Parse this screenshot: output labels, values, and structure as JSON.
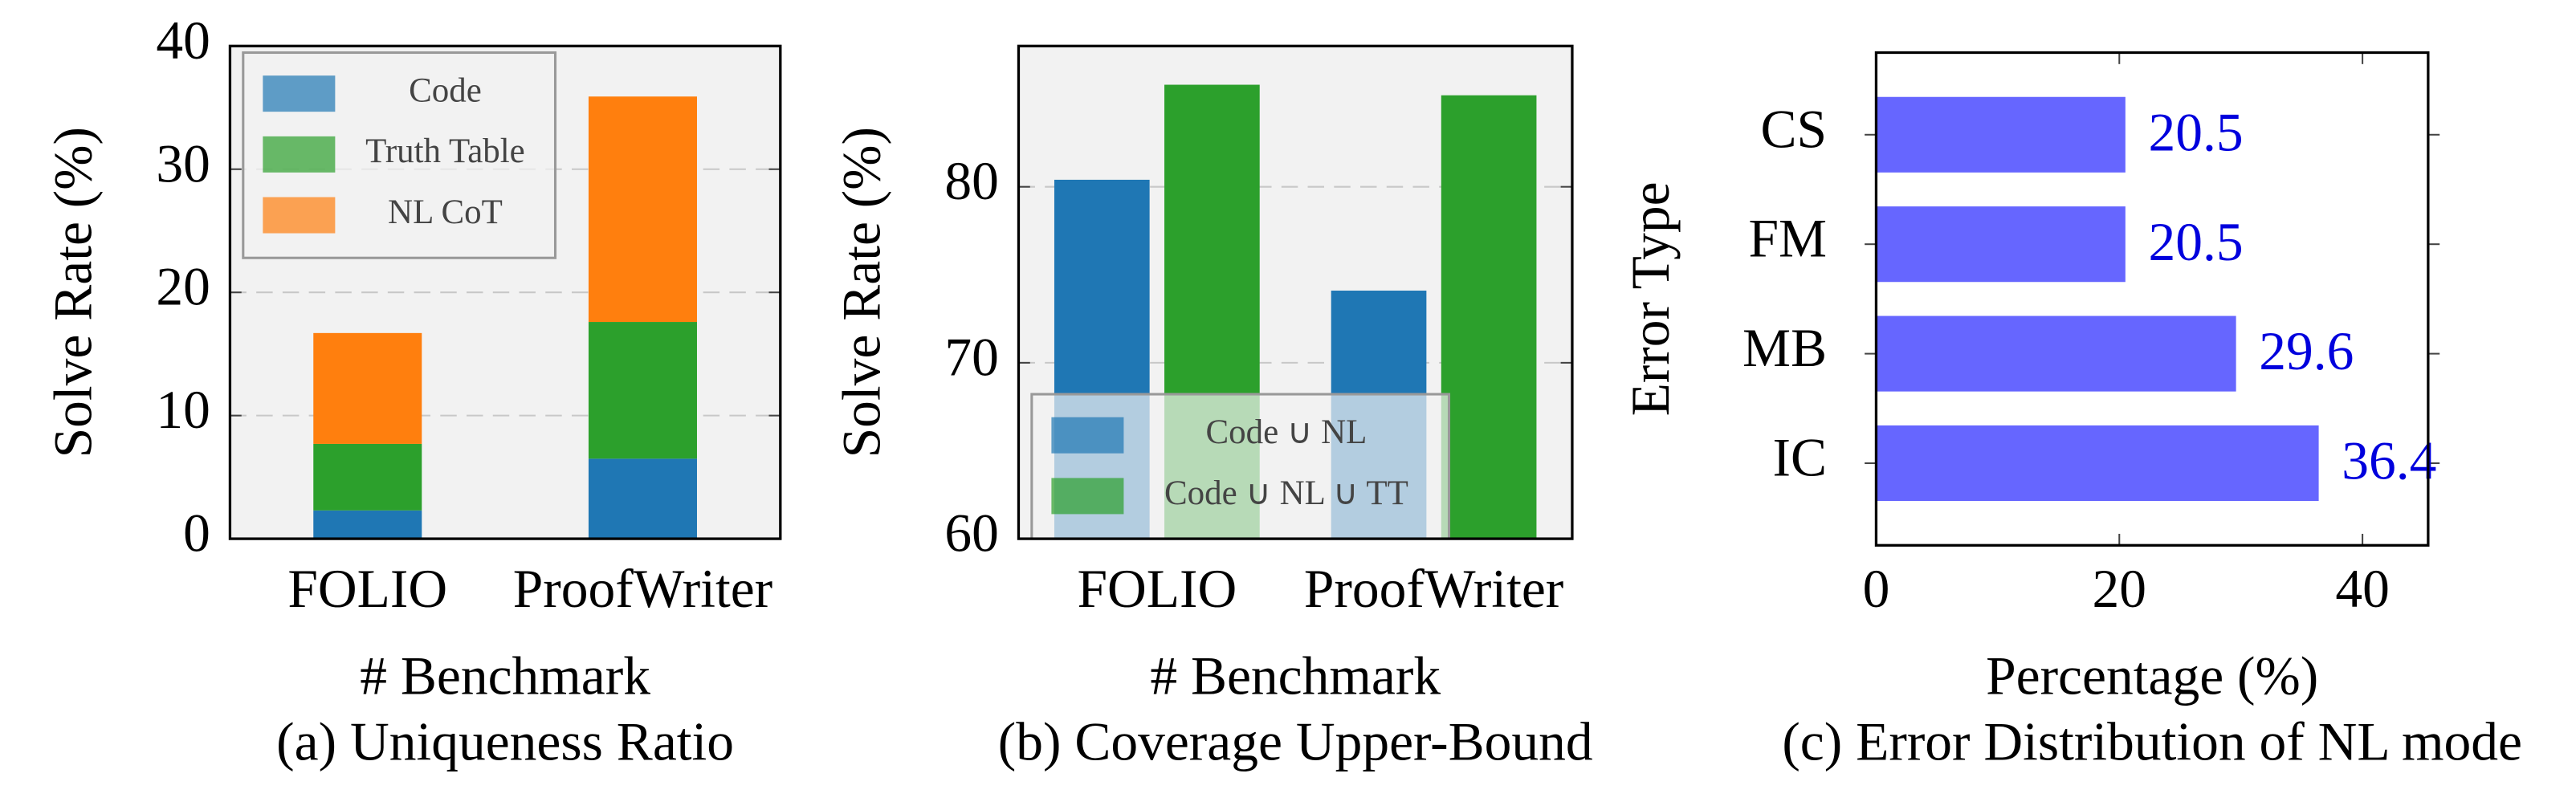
{
  "chart_data": [
    {
      "type": "stacked_bar",
      "ylabel": "Solve Rate (%)",
      "xlabel": "# Benchmark",
      "caption": "(a) Uniqueness Ratio",
      "categories": [
        "FOLIO",
        "ProofWriter"
      ],
      "series": [
        {
          "name": "Code",
          "color": "#1f77b4",
          "values": [
            2.3,
            6.5
          ]
        },
        {
          "name": "Truth Table",
          "color": "#2ca02c",
          "values": [
            5.4,
            11.1
          ]
        },
        {
          "name": "NL CoT",
          "color": "#ff7f0e",
          "values": [
            9.0,
            18.3
          ]
        }
      ],
      "ylim": [
        0,
        40
      ],
      "yticks": [
        0,
        10,
        20,
        30,
        40
      ],
      "grid": true,
      "legend": "upper left"
    },
    {
      "type": "bar",
      "ylabel": "Solve Rate (%)",
      "xlabel": "# Benchmark",
      "caption": "(b) Coverage Upper-Bound",
      "categories": [
        "FOLIO",
        "ProofWriter"
      ],
      "series": [
        {
          "name": "Code ∪ NL",
          "color": "#1f77b4",
          "values": [
            80.4,
            74.1
          ]
        },
        {
          "name": "Code ∪ NL ∪ TT",
          "color": "#2ca02c",
          "values": [
            85.8,
            85.2
          ]
        }
      ],
      "ylim": [
        60,
        88
      ],
      "yticks": [
        60,
        70,
        80
      ],
      "grid": true,
      "legend": "lower left"
    },
    {
      "type": "hbar",
      "ylabel": "Error Type",
      "xlabel": "Percentage (%)",
      "caption": "(c) Error Distribution of NL mode",
      "categories": [
        "CS",
        "FM",
        "MB",
        "IC"
      ],
      "values": [
        20.5,
        20.5,
        29.6,
        36.4
      ],
      "color": "#6666ff",
      "xlim": [
        0,
        45.4
      ],
      "xticks": [
        0,
        20,
        40
      ],
      "show_values": true
    }
  ]
}
